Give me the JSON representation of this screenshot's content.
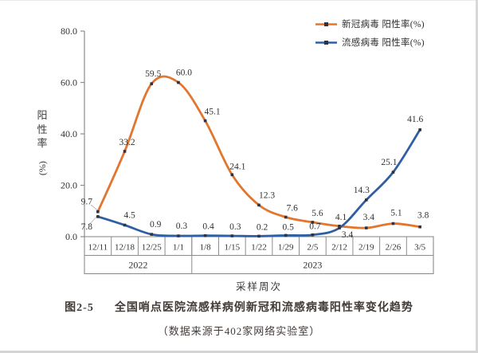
{
  "figure": {
    "caption_label": "图2-5",
    "caption_title": "全国哨点医院流感样病例新冠和流感病毒阳性率变化趋势",
    "caption_source": "（数据来源于402家网络实验室）"
  },
  "chart_data": {
    "type": "line",
    "title": "",
    "xlabel": "采样周次",
    "ylabel": "阳性率(%)",
    "ylim": [
      0,
      80
    ],
    "yticks": [
      "0.0",
      "20.0",
      "40.0",
      "60.0",
      "80.0"
    ],
    "grid": false,
    "smooth_lines": true,
    "legend_position": "top-right",
    "categories": [
      "12/11",
      "12/18",
      "12/25",
      "1/1",
      "1/8",
      "1/15",
      "1/22",
      "1/29",
      "2/5",
      "2/12",
      "2/19",
      "2/26",
      "3/5"
    ],
    "year_groups": [
      {
        "label": "2022",
        "span": 4
      },
      {
        "label": "2023",
        "span": 9
      }
    ],
    "series": [
      {
        "name": "新冠病毒 阳性率(%)",
        "color": "#E2762E",
        "values": [
          9.7,
          33.2,
          59.5,
          60.0,
          45.1,
          24.1,
          12.3,
          7.6,
          5.6,
          4.1,
          3.4,
          5.1,
          3.8
        ]
      },
      {
        "name": "流感病毒 阳性率(%)",
        "color": "#2E5FA3",
        "values": [
          7.8,
          4.5,
          0.9,
          0.3,
          0.4,
          0.3,
          0.2,
          0.5,
          0.7,
          3.4,
          14.3,
          25.1,
          41.6
        ]
      }
    ],
    "marker_color": "#32323E",
    "axis_color": "#8C8C8C",
    "label_color": "#323232"
  }
}
